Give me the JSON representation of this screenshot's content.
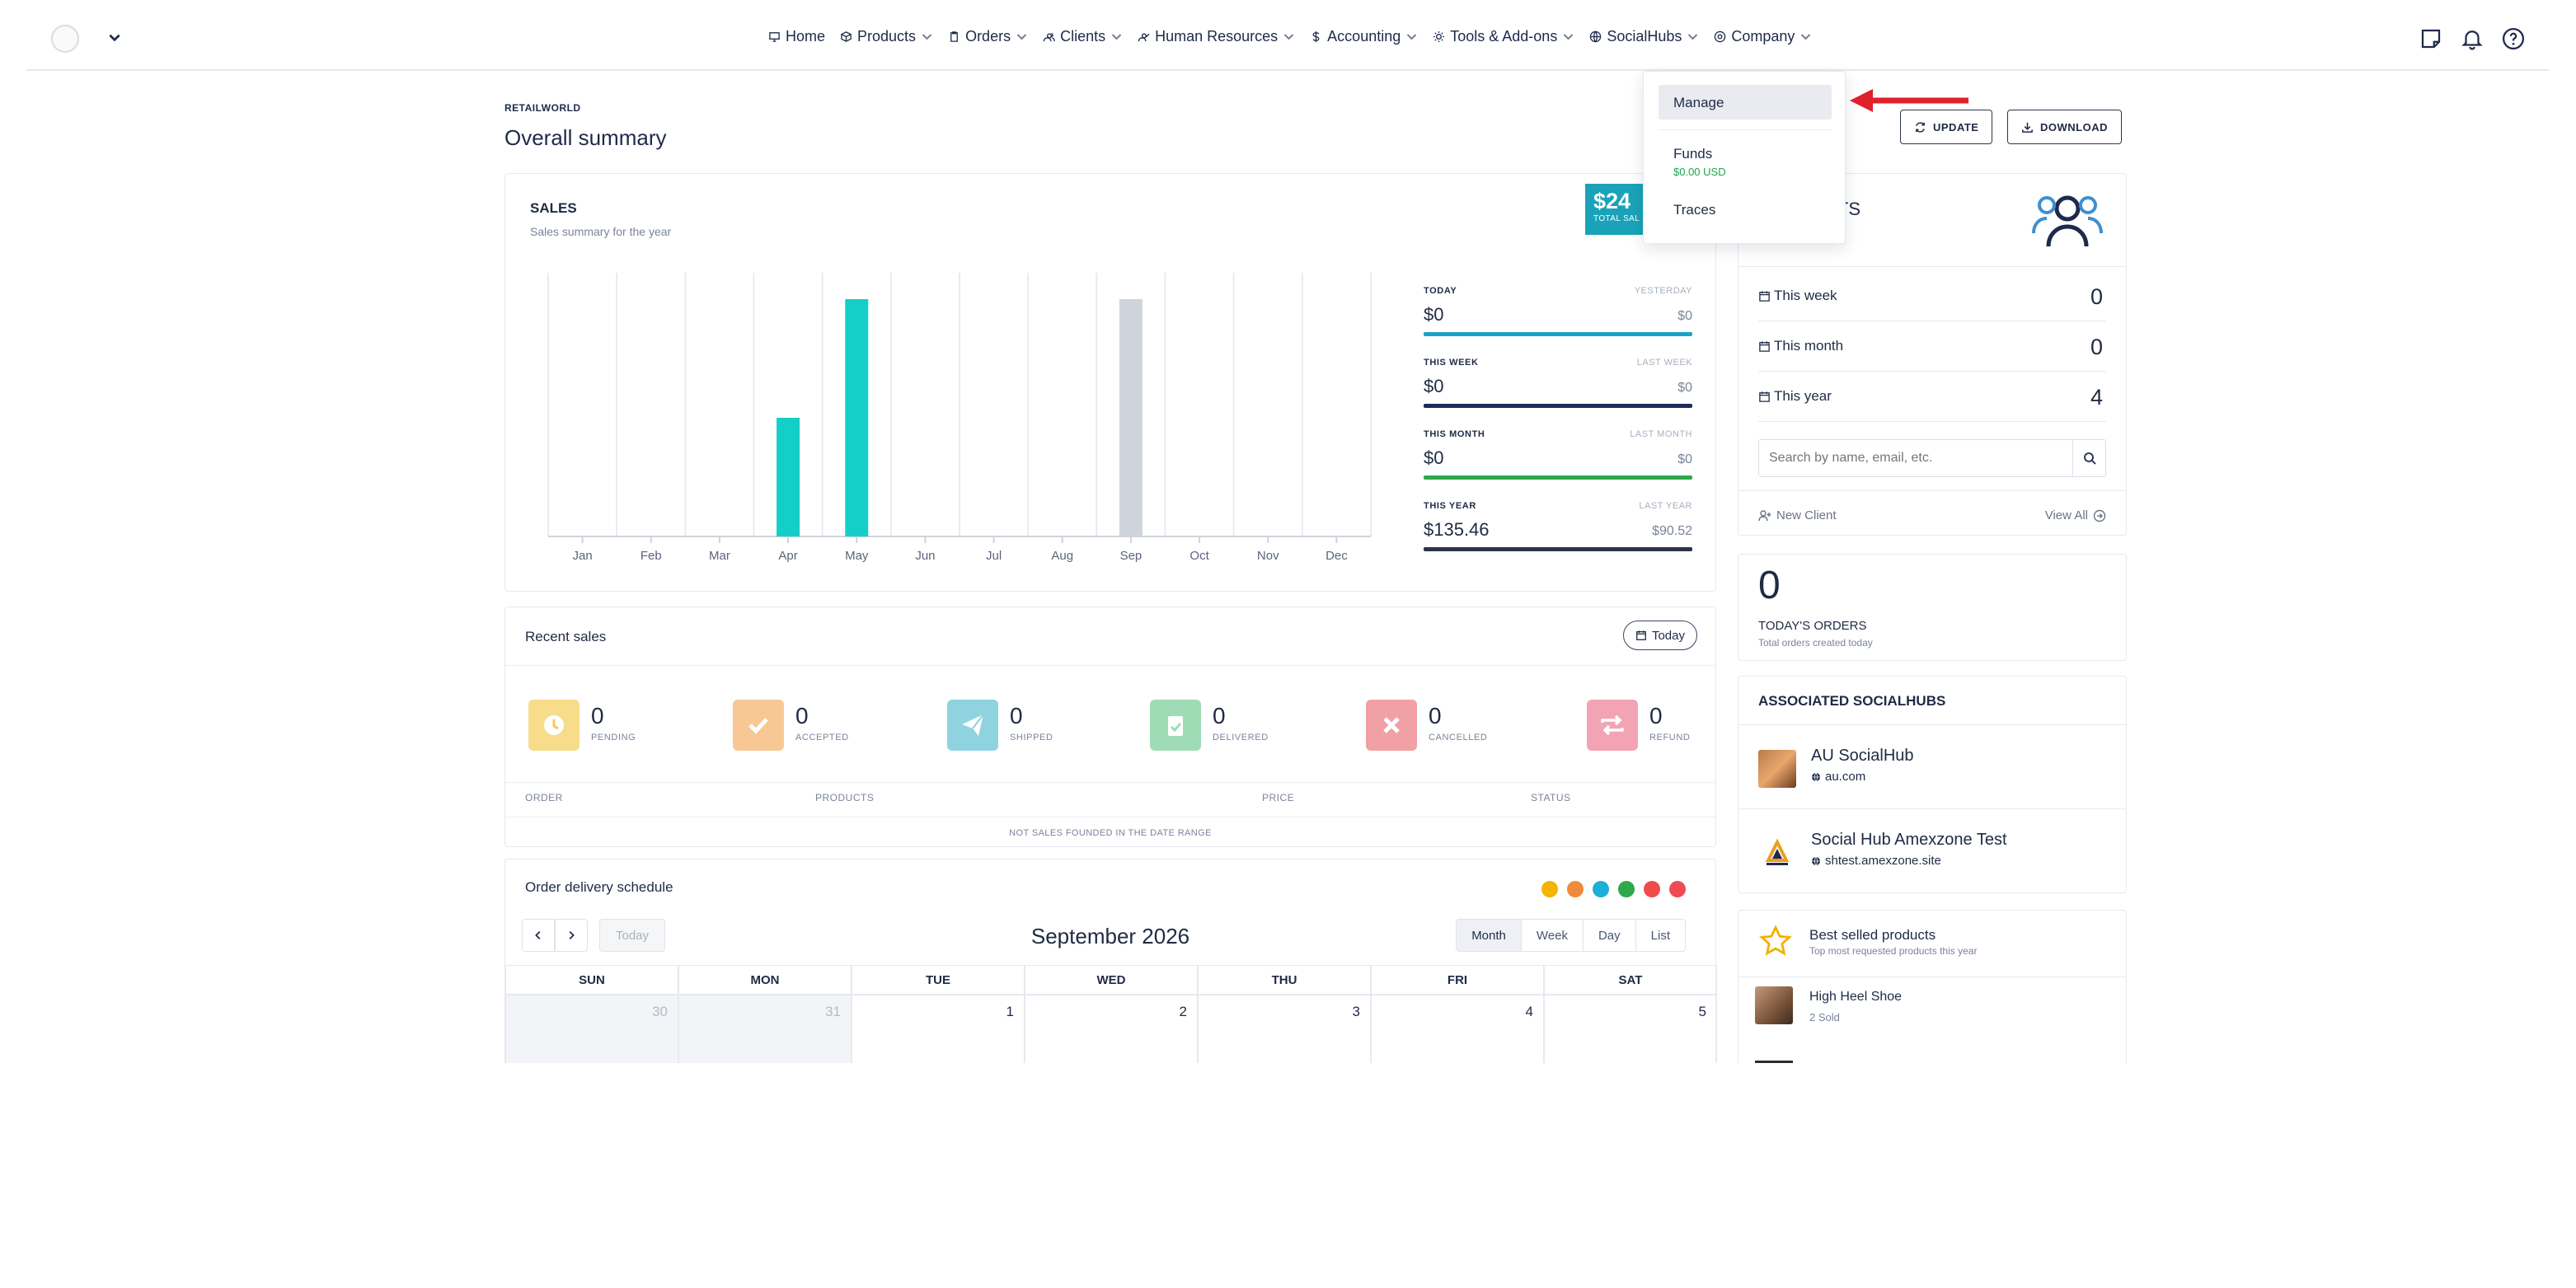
{
  "nav": {
    "items": [
      {
        "label": "Home",
        "icon": "monitor-icon",
        "caret": false
      },
      {
        "label": "Products",
        "icon": "box-icon",
        "caret": true
      },
      {
        "label": "Orders",
        "icon": "clipboard-icon",
        "caret": true
      },
      {
        "label": "Clients",
        "icon": "users-icon",
        "caret": true
      },
      {
        "label": "Human Resources",
        "icon": "user-check-icon",
        "caret": true
      },
      {
        "label": "Accounting",
        "icon": "dollar-icon",
        "caret": true
      },
      {
        "label": "Tools & Add-ons",
        "icon": "gear-icon",
        "caret": true
      },
      {
        "label": "SocialHubs",
        "icon": "globe-icon",
        "caret": true
      },
      {
        "label": "Company",
        "icon": "cog-icon",
        "caret": true
      }
    ]
  },
  "dropdown": {
    "manage": "Manage",
    "funds": "Funds",
    "funds_value": "$0.00 USD",
    "traces": "Traces"
  },
  "header": {
    "brand": "RETAILWORLD",
    "title": "Overall summary",
    "update_label": "UPDATE",
    "download_label": "DOWNLOAD"
  },
  "sales": {
    "title": "SALES",
    "subtitle": "Sales summary for the year",
    "badge_value": "$24",
    "badge_label": "TOTAL SAL",
    "stats": [
      {
        "label": "TODAY",
        "value": "$0",
        "compare_label": "YESTERDAY",
        "compare_value": "$0",
        "color": "#1aa3c4"
      },
      {
        "label": "THIS WEEK",
        "value": "$0",
        "compare_label": "LAST WEEK",
        "compare_value": "$0",
        "color": "#1e2a5a"
      },
      {
        "label": "THIS MONTH",
        "value": "$0",
        "compare_label": "LAST MONTH",
        "compare_value": "$0",
        "color": "#2ea84a"
      },
      {
        "label": "THIS YEAR",
        "value": "$135.46",
        "compare_label": "LAST YEAR",
        "compare_value": "$90.52",
        "color": "#2c3448"
      }
    ]
  },
  "chart_data": {
    "type": "bar",
    "categories": [
      "Jan",
      "Feb",
      "Mar",
      "Apr",
      "May",
      "Jun",
      "Jul",
      "Aug",
      "Sep",
      "Oct",
      "Nov",
      "Dec"
    ],
    "series": [
      {
        "values": [
          0,
          0,
          0,
          45,
          90,
          0,
          0,
          0,
          0,
          0,
          0,
          0
        ],
        "color": "#14cfc7"
      },
      {
        "values": [
          0,
          0,
          0,
          0,
          0,
          0,
          0,
          0,
          90,
          0,
          0,
          0
        ],
        "color": "#cfd3dc"
      }
    ],
    "ylim": [
      0,
      100
    ],
    "grid": true,
    "title": "",
    "xlabel": "",
    "ylabel": ""
  },
  "recent_sales": {
    "title": "Recent sales",
    "today_label": "Today",
    "statuses": [
      {
        "count": "0",
        "label": "PENDING",
        "bg": "#f7dd8a",
        "fg": "#ffffff",
        "icon": "clock-icon"
      },
      {
        "count": "0",
        "label": "ACCEPTED",
        "bg": "#f8c894",
        "fg": "#ffffff",
        "icon": "check-icon"
      },
      {
        "count": "0",
        "label": "SHIPPED",
        "bg": "#8fd3e0",
        "fg": "#ffffff",
        "icon": "paper-plane-icon"
      },
      {
        "count": "0",
        "label": "DELIVERED",
        "bg": "#9fdcb6",
        "fg": "#ffffff",
        "icon": "clipboard-check-icon"
      },
      {
        "count": "0",
        "label": "CANCELLED",
        "bg": "#f1a0a6",
        "fg": "#ffffff",
        "icon": "x-icon"
      },
      {
        "count": "0",
        "label": "REFUND",
        "bg": "#f2a4b4",
        "fg": "#ffffff",
        "icon": "repeat-icon"
      }
    ],
    "columns": [
      "ORDER",
      "PRODUCTS",
      "PRICE",
      "STATUS"
    ],
    "empty_text": "NOT SALES FOUNDED IN THE DATE RANGE"
  },
  "calendar": {
    "title": "Order delivery schedule",
    "dot_colors": [
      "#f4b400",
      "#f08a3c",
      "#1db0d6",
      "#2ea84a",
      "#ef4b4b",
      "#ef4b57"
    ],
    "today_label": "Today",
    "month_label": "September 2026",
    "views": [
      "Month",
      "Week",
      "Day",
      "List"
    ],
    "active_view": "Month",
    "weekdays": [
      "SUN",
      "MON",
      "TUE",
      "WED",
      "THU",
      "FRI",
      "SAT"
    ],
    "days": [
      "30",
      "31",
      "1",
      "2",
      "3",
      "4",
      "5"
    ]
  },
  "clients": {
    "title": "NTS",
    "rows": [
      {
        "label": "This week",
        "value": "0"
      },
      {
        "label": "This month",
        "value": "0"
      },
      {
        "label": "This year",
        "value": "4"
      }
    ],
    "search_placeholder": "Search by name, email, etc.",
    "new_client": "New Client",
    "view_all": "View All"
  },
  "todays_orders": {
    "count": "0",
    "label": "TODAY'S ORDERS",
    "sub": "Total orders created today"
  },
  "socialhubs": {
    "title": "ASSOCIATED SOCIALHUBS",
    "items": [
      {
        "name": "AU SocialHub",
        "url": "au.com"
      },
      {
        "name": "Social Hub Amexzone Test",
        "url": "shtest.amexzone.site"
      }
    ]
  },
  "best_products": {
    "title": "Best selled products",
    "subtitle": "Top most requested products this year",
    "items": [
      {
        "name": "High Heel Shoe",
        "sold": "2 Sold"
      }
    ]
  }
}
